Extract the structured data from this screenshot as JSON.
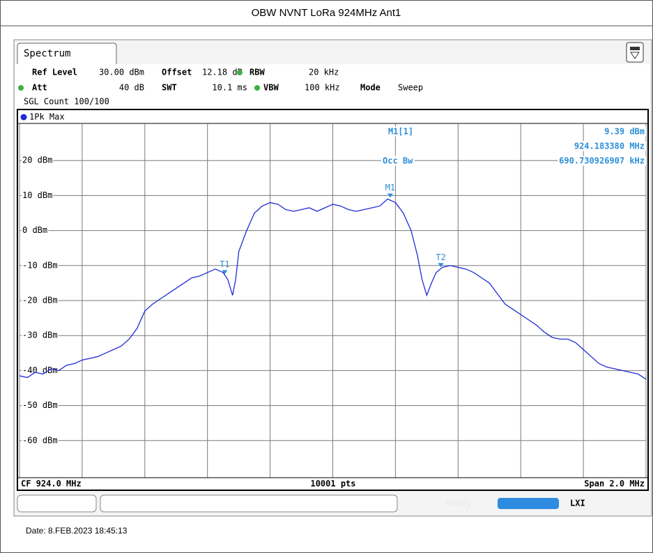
{
  "page_title": "OBW NVNT LoRa 924MHz Ant1",
  "tab": "Spectrum",
  "settings": {
    "ref_level_label": "Ref Level",
    "ref_level": "30.00 dBm",
    "offset_label": "Offset",
    "offset": "12.18 dB",
    "rbw_label": "RBW",
    "rbw": "20 kHz",
    "att_label": "Att",
    "att": "40 dB",
    "swt_label": "SWT",
    "swt": "10.1 ms",
    "vbw_label": "VBW",
    "vbw": "100 kHz",
    "mode_label": "Mode",
    "mode": "Sweep",
    "count": "SGL Count 100/100"
  },
  "marker_panel": {
    "name": "M1[1]",
    "level": "9.39 dBm",
    "frequency": "924.183380 MHz",
    "occ_label": "Occ Bw",
    "occ_value": "690.730926907 kHz"
  },
  "footer": {
    "cf": "CF 924.0 MHz",
    "points": "10001 pts",
    "span": "Span 2.0 MHz"
  },
  "status": "Ready",
  "date": "Date: 8.FEB.2023  18:45:13",
  "chart_data": {
    "type": "line",
    "xlim": [
      923,
      925
    ],
    "xticks": [
      923,
      923.2,
      923.4,
      923.6,
      923.8,
      924,
      924.2,
      924.4,
      924.6,
      924.8,
      925
    ],
    "ylim": [
      -70,
      30
    ],
    "yticks": [
      {
        "value": 20,
        "label": "20 dBm"
      },
      {
        "value": 10,
        "label": "10 dBm"
      },
      {
        "value": 0,
        "label": "0 dBm"
      },
      {
        "value": -10,
        "label": "-10 dBm"
      },
      {
        "value": -20,
        "label": "-20 dBm"
      },
      {
        "value": -30,
        "label": "-30 dBm"
      },
      {
        "value": -40,
        "label": "-40 dBm"
      },
      {
        "value": -50,
        "label": "-50 dBm"
      },
      {
        "value": -60,
        "label": "-60 dBm"
      }
    ],
    "grid": true,
    "x": [
      923,
      923.025,
      923.05,
      923.075,
      923.1,
      923.125,
      923.15,
      923.175,
      923.2,
      923.225,
      923.25,
      923.275,
      923.3,
      923.325,
      923.35,
      923.375,
      923.4,
      923.425,
      923.45,
      923.475,
      923.5,
      923.525,
      923.55,
      923.575,
      923.6,
      923.625,
      923.65,
      923.665,
      923.68,
      923.69,
      923.7,
      923.725,
      923.75,
      923.775,
      923.8,
      923.825,
      923.85,
      923.875,
      923.9,
      923.925,
      923.95,
      923.975,
      924,
      924.025,
      924.05,
      924.075,
      924.1,
      924.125,
      924.15,
      924.175,
      924.2,
      924.225,
      924.25,
      924.27,
      924.285,
      924.3,
      924.315,
      924.33,
      924.35,
      924.375,
      924.4,
      924.425,
      924.45,
      924.475,
      924.5,
      924.525,
      924.55,
      924.575,
      924.6,
      924.625,
      924.65,
      924.675,
      924.7,
      924.725,
      924.75,
      924.775,
      924.8,
      924.825,
      924.85,
      924.875,
      924.9,
      924.925,
      924.95,
      924.975,
      925
    ],
    "series": [
      {
        "name": "1Pk Max",
        "color": "#1f2bd6",
        "values": [
          -41.5,
          -42,
          -40.5,
          -41,
          -39.5,
          -40,
          -38.5,
          -38,
          -37,
          -36.5,
          -36,
          -35,
          -34,
          -33,
          -31,
          -28,
          -23,
          -21,
          -19.5,
          -18,
          -16.5,
          -15,
          -13.5,
          -13,
          -12,
          -11,
          -12,
          -14,
          -18.5,
          -14,
          -6,
          0,
          5,
          7,
          8,
          7.5,
          6,
          5.5,
          6,
          6.5,
          5.5,
          6.5,
          7.5,
          7,
          6,
          5.5,
          6,
          6.5,
          7,
          9,
          8,
          5,
          0,
          -7,
          -14,
          -18.5,
          -15,
          -12,
          -10.5,
          -10,
          -10.5,
          -11,
          -12,
          -13.5,
          -15,
          -18,
          -21,
          -22.5,
          -24,
          -25.5,
          -27,
          -29,
          -30.5,
          -31,
          -31,
          -32,
          -34,
          -36,
          -38,
          -39,
          -39.5,
          -40,
          -40.5,
          -41,
          -42.5
        ]
      }
    ],
    "markers": [
      {
        "label": "M1",
        "x": 924.18338,
        "y": 9.39
      },
      {
        "label": "T1",
        "x": 923.655,
        "y": -12.5
      },
      {
        "label": "T2",
        "x": 924.345,
        "y": -10.5
      }
    ],
    "marker_color": "#2b8fd8"
  }
}
